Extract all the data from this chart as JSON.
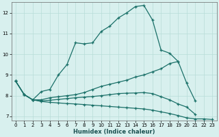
{
  "title": "",
  "xlabel": "Humidex (Indice chaleur)",
  "bg_color": "#d8f0ee",
  "grid_color": "#b8dcd8",
  "line_color": "#1a7068",
  "ylim": [
    6.8,
    12.5
  ],
  "xlim": [
    -0.5,
    23.5
  ],
  "yticks": [
    7,
    8,
    9,
    10,
    11,
    12
  ],
  "xticks": [
    0,
    1,
    2,
    3,
    4,
    5,
    6,
    7,
    8,
    9,
    10,
    11,
    12,
    13,
    14,
    15,
    16,
    17,
    18,
    19,
    20,
    21,
    22,
    23
  ],
  "lines": [
    {
      "x": [
        0,
        1,
        2,
        3,
        4,
        5,
        6,
        7,
        8,
        9,
        10,
        11,
        12,
        13,
        14,
        15,
        16,
        17,
        18,
        19
      ],
      "y": [
        8.7,
        8.05,
        7.8,
        8.2,
        8.3,
        9.0,
        9.5,
        10.55,
        10.5,
        10.55,
        11.1,
        11.35,
        11.75,
        12.0,
        12.3,
        12.35,
        11.65,
        10.2,
        10.05,
        9.65
      ]
    },
    {
      "x": [
        0,
        1,
        2,
        3,
        4,
        5,
        6,
        7,
        8,
        9,
        10,
        11,
        12,
        13,
        14,
        15,
        16,
        17,
        18,
        19,
        20,
        21
      ],
      "y": [
        8.7,
        8.05,
        7.8,
        7.8,
        7.9,
        7.95,
        8.0,
        8.05,
        8.15,
        8.3,
        8.45,
        8.55,
        8.65,
        8.75,
        8.9,
        9.0,
        9.15,
        9.3,
        9.55,
        9.65,
        8.6,
        7.75
      ]
    },
    {
      "x": [
        0,
        1,
        2,
        3,
        4,
        5,
        6,
        7,
        8,
        9,
        10,
        11,
        12,
        13,
        14,
        15,
        16,
        17,
        18,
        19,
        20,
        21
      ],
      "y": [
        8.7,
        8.05,
        7.8,
        7.75,
        7.78,
        7.82,
        7.86,
        7.9,
        7.93,
        7.96,
        8.0,
        8.05,
        8.1,
        8.12,
        8.13,
        8.15,
        8.1,
        7.95,
        7.8,
        7.6,
        7.45,
        7.1
      ]
    },
    {
      "x": [
        0,
        1,
        2,
        3,
        4,
        5,
        6,
        7,
        8,
        9,
        10,
        11,
        12,
        13,
        14,
        15,
        16,
        17,
        18,
        19,
        20,
        21,
        22,
        23
      ],
      "y": [
        8.7,
        8.05,
        7.8,
        7.72,
        7.68,
        7.65,
        7.62,
        7.6,
        7.57,
        7.54,
        7.51,
        7.48,
        7.45,
        7.42,
        7.39,
        7.36,
        7.3,
        7.22,
        7.14,
        7.04,
        6.93,
        6.88,
        6.88,
        6.85
      ]
    }
  ]
}
